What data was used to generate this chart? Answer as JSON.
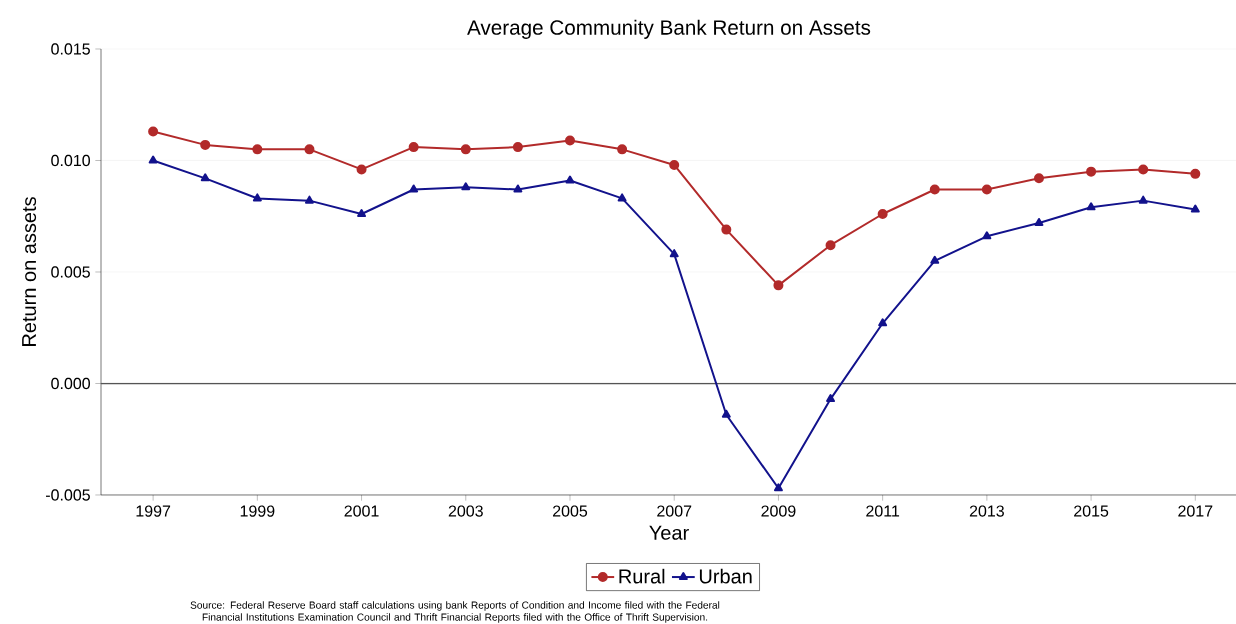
{
  "chart_data": {
    "type": "line",
    "title": "Average Community Bank Return on Assets",
    "xlabel": "Year",
    "ylabel": "Return on assets",
    "x": [
      1997,
      1998,
      1999,
      2000,
      2001,
      2002,
      2003,
      2004,
      2005,
      2006,
      2007,
      2008,
      2009,
      2010,
      2011,
      2012,
      2013,
      2014,
      2015,
      2016,
      2017
    ],
    "series": [
      {
        "name": "Rural",
        "color": "#b22a2a",
        "marker": "circle",
        "values": [
          0.0113,
          0.0107,
          0.0105,
          0.0105,
          0.0096,
          0.0106,
          0.0105,
          0.0106,
          0.0109,
          0.0105,
          0.0098,
          0.0069,
          0.0044,
          0.0062,
          0.0076,
          0.0087,
          0.0087,
          0.0092,
          0.0095,
          0.0096,
          0.0094
        ]
      },
      {
        "name": "Urban",
        "color": "#12128c",
        "marker": "triangle",
        "values": [
          0.01,
          0.0092,
          0.0083,
          0.0082,
          0.0076,
          0.0087,
          0.0088,
          0.0087,
          0.0091,
          0.0083,
          0.0058,
          -0.0014,
          -0.0047,
          -0.0007,
          0.0027,
          0.0055,
          0.0066,
          0.0072,
          0.0079,
          0.0082,
          0.0078
        ]
      }
    ],
    "xlim": [
      1996,
      2017.8
    ],
    "xticks": [
      1997,
      1999,
      2001,
      2003,
      2005,
      2007,
      2009,
      2011,
      2013,
      2015,
      2017
    ],
    "ylim": [
      -0.005,
      0.015
    ],
    "yticks": [
      {
        "value": -0.005,
        "label": "-0.005"
      },
      {
        "value": 0,
        "label": "0.000"
      },
      {
        "value": 0.005,
        "label": "0.005"
      },
      {
        "value": 0.01,
        "label": "0.010"
      },
      {
        "value": 0.015,
        "label": "0.015"
      }
    ],
    "grid": "y",
    "legend": "bottom",
    "line_style": "solid",
    "ref_lines": [
      {
        "axis": "y",
        "value": 0,
        "color": "#555555"
      }
    ],
    "annotations": [
      "Source: Federal Reserve Board staff calculations using bank Reports of Condition and Income filed with the Federal Financial Institutions Examination Council and Thrift Financial Reports filed with the Office of Thrift Supervision."
    ]
  }
}
